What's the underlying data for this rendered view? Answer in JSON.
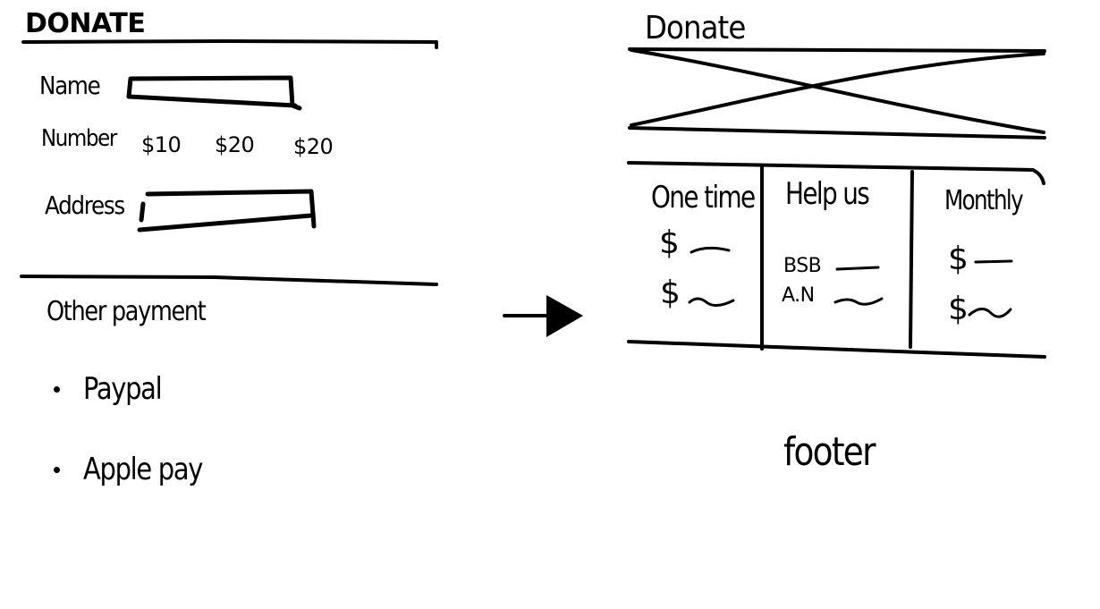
{
  "left_wireframe": {
    "title": "DONATE",
    "form": {
      "name_label": "Name",
      "number_label": "Number",
      "amount_options": [
        "$10",
        "$20",
        "$20"
      ],
      "address_label": "Address"
    },
    "other_payment": {
      "heading": "Other payment",
      "methods": [
        "Paypal",
        "Apple pay"
      ]
    }
  },
  "arrow": {
    "icon": "right-arrow-icon"
  },
  "right_wireframe": {
    "title": "Donate",
    "hero_image": {
      "icon": "image-placeholder-icon"
    },
    "columns": {
      "one_time": {
        "heading": "One time",
        "amounts": [
          "$",
          "$"
        ]
      },
      "help_us": {
        "heading": "Help us",
        "bank_fields": [
          "BSB",
          "A.N"
        ]
      },
      "monthly": {
        "heading": "Monthly",
        "amounts": [
          "$",
          "$"
        ]
      }
    },
    "footer_label": "footer"
  }
}
